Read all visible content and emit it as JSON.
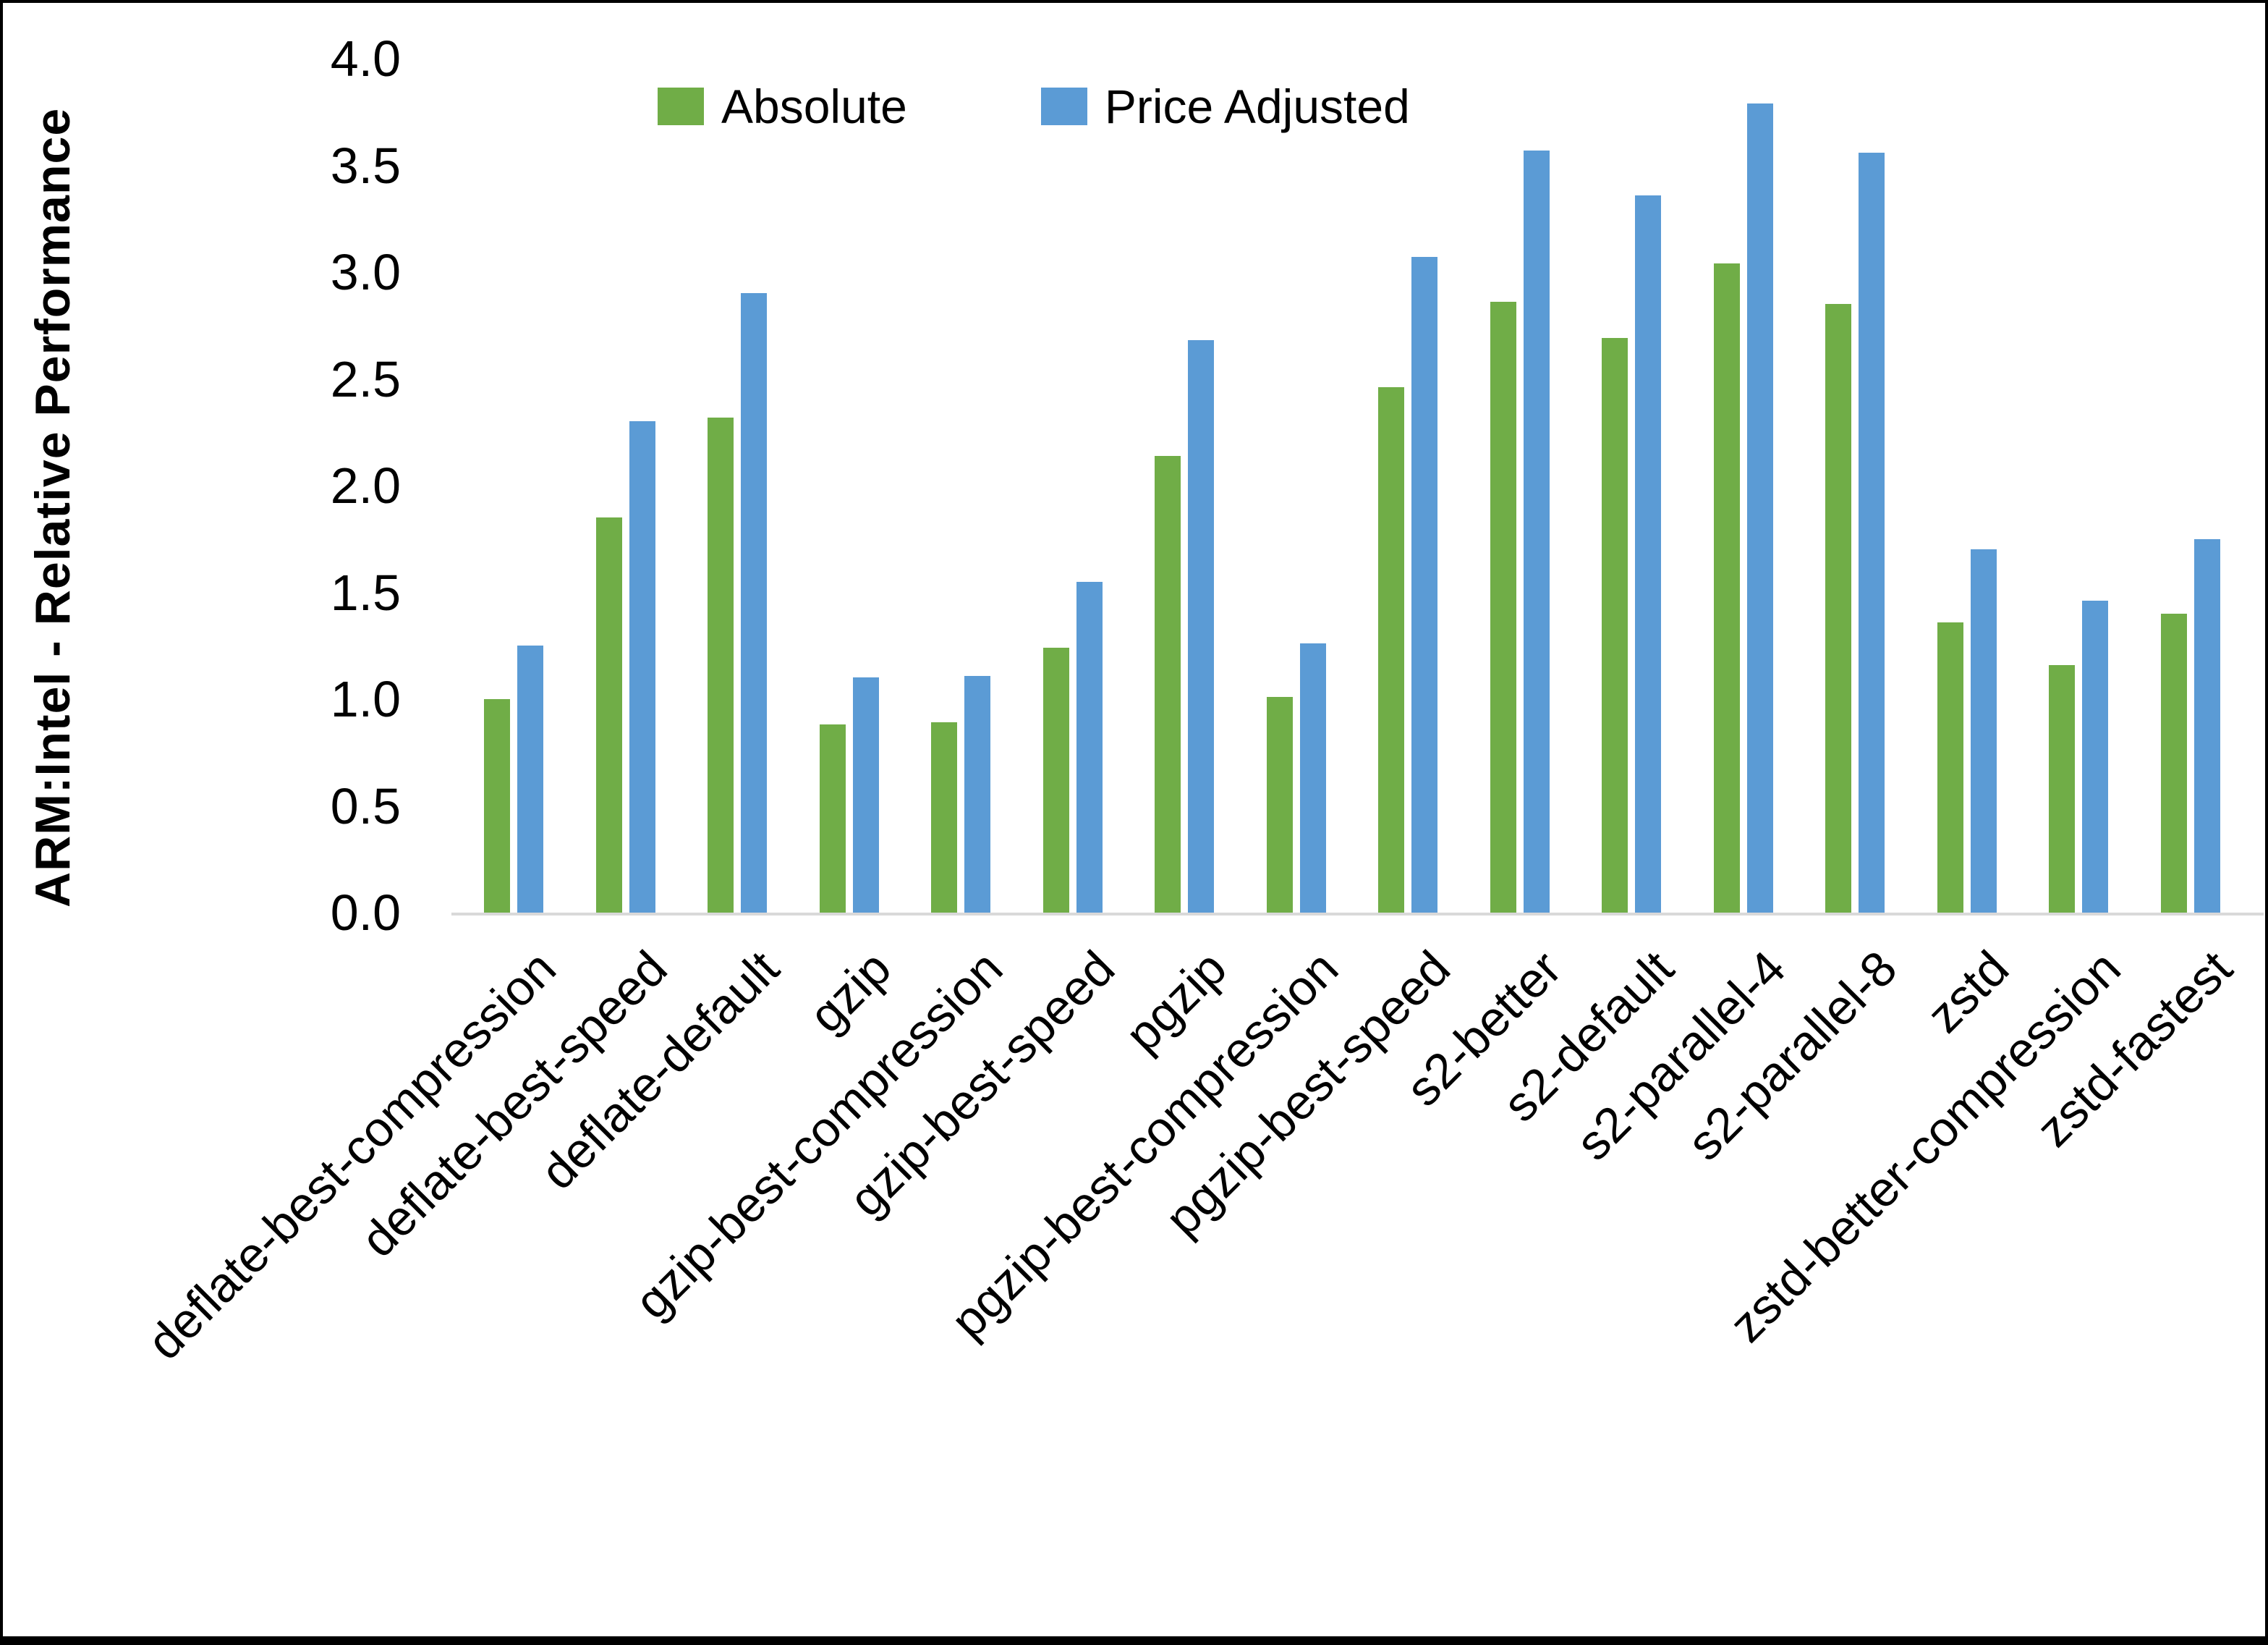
{
  "figure": {
    "background": "#ffffff",
    "frame_color": "#000000",
    "axis_line_color": "#d9d9d9"
  },
  "chart_data": {
    "type": "bar",
    "title": "",
    "xlabel": "",
    "ylabel": "ARM:Intel - Relative Performance",
    "ylim": [
      0.0,
      4.0
    ],
    "ytick_step": 0.5,
    "ytick_labels": [
      "0.0",
      "0.5",
      "1.0",
      "1.5",
      "2.0",
      "2.5",
      "3.0",
      "3.5",
      "4.0"
    ],
    "grid": false,
    "legend_position": "top-center",
    "categories": [
      "deflate-best-compression",
      "deflate-best-speed",
      "deflate-default",
      "gzip",
      "gzip-best-compression",
      "gzip-best-speed",
      "pgzip",
      "pgzip-best-compression",
      "pgzip-best-speed",
      "s2-better",
      "s2-default",
      "s2-parallel-4",
      "s2-parallel-8",
      "zstd",
      "zstd-better-compression",
      "zstd-fastest"
    ],
    "series": [
      {
        "name": "Absolute",
        "color": "#70AD47",
        "values": [
          1.0,
          1.85,
          2.32,
          0.88,
          0.89,
          1.24,
          2.14,
          1.01,
          2.46,
          2.86,
          2.69,
          3.04,
          2.85,
          1.36,
          1.16,
          1.4
        ]
      },
      {
        "name": "Price Adjusted",
        "color": "#5B9BD5",
        "values": [
          1.25,
          2.3,
          2.9,
          1.1,
          1.11,
          1.55,
          2.68,
          1.26,
          3.07,
          3.57,
          3.36,
          3.79,
          3.56,
          1.7,
          1.46,
          1.75
        ]
      }
    ]
  }
}
